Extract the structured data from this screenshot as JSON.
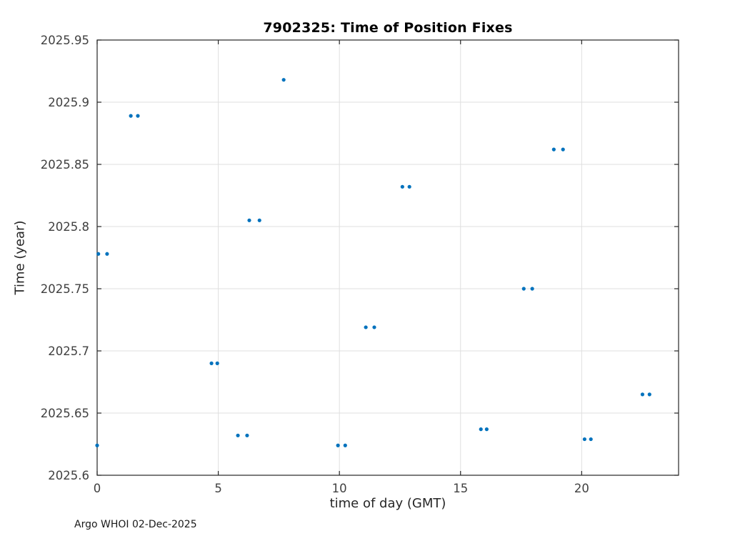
{
  "figure": {
    "background": "#ffffff",
    "footer": "Argo WHOI 02-Dec-2025"
  },
  "chart_data": {
    "type": "scatter",
    "title": "7902325: Time of Position Fixes",
    "xlabel": "time of day (GMT)",
    "ylabel": "Time (year)",
    "xlim": [
      0,
      24
    ],
    "ylim": [
      2025.6,
      2025.95
    ],
    "xticks": [
      0,
      5,
      10,
      15,
      20
    ],
    "xtick_labels": [
      "0",
      "5",
      "10",
      "15",
      "20"
    ],
    "yticks": [
      2025.6,
      2025.65,
      2025.7,
      2025.75,
      2025.8,
      2025.85,
      2025.9,
      2025.95
    ],
    "ytick_labels": [
      "2025.6",
      "2025.65",
      "2025.7",
      "2025.75",
      "2025.8",
      "2025.85",
      "2025.9",
      "2025.95"
    ],
    "grid": true,
    "legend": "none",
    "marker_color": "#0072BD",
    "axis_color": "#262626",
    "grid_color": "#dfdfdf",
    "tick_label_color": "#404040",
    "points": [
      [
        0.0,
        2025.624
      ],
      [
        0.05,
        2025.778
      ],
      [
        0.41,
        2025.778
      ],
      [
        1.39,
        2025.889
      ],
      [
        1.68,
        2025.889
      ],
      [
        4.72,
        2025.69
      ],
      [
        4.96,
        2025.69
      ],
      [
        5.81,
        2025.632
      ],
      [
        6.19,
        2025.632
      ],
      [
        6.28,
        2025.805
      ],
      [
        6.7,
        2025.805
      ],
      [
        7.7,
        2025.918
      ],
      [
        9.94,
        2025.624
      ],
      [
        10.24,
        2025.624
      ],
      [
        11.09,
        2025.719
      ],
      [
        11.44,
        2025.719
      ],
      [
        12.6,
        2025.832
      ],
      [
        12.89,
        2025.832
      ],
      [
        15.84,
        2025.637
      ],
      [
        16.08,
        2025.637
      ],
      [
        17.61,
        2025.75
      ],
      [
        17.96,
        2025.75
      ],
      [
        18.85,
        2025.862
      ],
      [
        19.23,
        2025.862
      ],
      [
        20.12,
        2025.629
      ],
      [
        20.38,
        2025.629
      ],
      [
        22.51,
        2025.665
      ],
      [
        22.8,
        2025.665
      ]
    ]
  }
}
